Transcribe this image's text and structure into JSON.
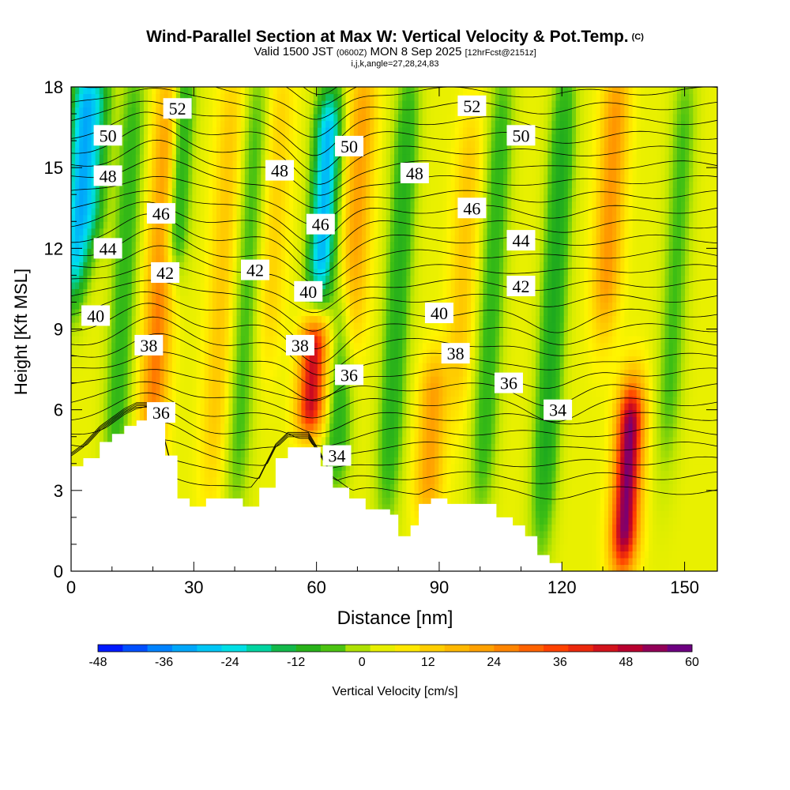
{
  "title": {
    "main": "Wind-Parallel Section at Max W: Vertical Velocity & Pot.Temp.",
    "copyright": "(C)",
    "valid_prefix": "Valid 1500 JST",
    "zulu": "(0600Z)",
    "valid_date": "MON 8 Sep 2025",
    "forecast": "[12hrFcst@2151z]",
    "indices": "i,j,k,angle=27,28,24,83"
  },
  "chart_data": {
    "type": "heatmap",
    "xlabel": "Distance [nm]",
    "ylabel": "Height [Kft MSL]",
    "xlim": [
      0,
      158
    ],
    "ylim": [
      0,
      18
    ],
    "x_ticks": [
      0,
      30,
      60,
      90,
      120,
      150
    ],
    "y_ticks": [
      0,
      3,
      6,
      9,
      12,
      15,
      18
    ],
    "colorbar": {
      "label": "Vertical Velocity [cm/s]",
      "min": -48,
      "max": 60,
      "step": 4.5,
      "tick_values": [
        -48,
        -36,
        -24,
        -12,
        0,
        12,
        24,
        36,
        48,
        60
      ],
      "tick_labels": [
        "-48",
        "-36",
        "-24",
        "-12",
        "0",
        "12",
        "24",
        "36",
        "48",
        "60"
      ]
    },
    "colors": {
      "strong_down": "#0000ff",
      "down": "#00e0f0",
      "weak_down": "#22b020",
      "neutral": "#b8e000",
      "weak_up": "#fff000",
      "up": "#ff9000",
      "strong_up": "#e00000",
      "max_up": "#600090",
      "terrain": "#ffffff"
    },
    "terrain_profile": [
      [
        0,
        3.9
      ],
      [
        3,
        4.2
      ],
      [
        7,
        4.8
      ],
      [
        10,
        5.1
      ],
      [
        13,
        5.4
      ],
      [
        16,
        5.6
      ],
      [
        20,
        5.6
      ],
      [
        23,
        4.3
      ],
      [
        26,
        2.7
      ],
      [
        29,
        2.4
      ],
      [
        33,
        2.7
      ],
      [
        39,
        2.7
      ],
      [
        42,
        2.4
      ],
      [
        46,
        3.1
      ],
      [
        50,
        4.2
      ],
      [
        53,
        4.6
      ],
      [
        58,
        4.6
      ],
      [
        61,
        3.9
      ],
      [
        64,
        3.1
      ],
      [
        68,
        2.7
      ],
      [
        72,
        2.3
      ],
      [
        78,
        2.1
      ],
      [
        80,
        1.3
      ],
      [
        83,
        1.7
      ],
      [
        85,
        2.5
      ],
      [
        88,
        2.7
      ],
      [
        92,
        2.5
      ],
      [
        100,
        2.5
      ],
      [
        104,
        2.0
      ],
      [
        108,
        1.7
      ],
      [
        111,
        1.3
      ],
      [
        114,
        0.6
      ],
      [
        117,
        0.3
      ],
      [
        120,
        0
      ],
      [
        158,
        0
      ]
    ],
    "vertical_velocity_features": [
      {
        "x": 2,
        "z_range": [
          11,
          18
        ],
        "w": -30
      },
      {
        "x": 6,
        "z_range": [
          13,
          18
        ],
        "w": -18
      },
      {
        "x": 13,
        "z_range": [
          4,
          18
        ],
        "w": -12
      },
      {
        "x": 22,
        "z_range": [
          5,
          18
        ],
        "w": 24
      },
      {
        "x": 26,
        "z_range": [
          12,
          18
        ],
        "w": -20
      },
      {
        "x": 37,
        "z_range": [
          4,
          18
        ],
        "w": 10
      },
      {
        "x": 43,
        "z_range": [
          3,
          18
        ],
        "w": -10
      },
      {
        "x": 50,
        "z_range": [
          9,
          18
        ],
        "w": 8
      },
      {
        "x": 59,
        "z_range": [
          6,
          8.5
        ],
        "w": 42
      },
      {
        "x": 62,
        "z_range": [
          11,
          17
        ],
        "w": -34
      },
      {
        "x": 66,
        "z_range": [
          4,
          10
        ],
        "w": -14
      },
      {
        "x": 70,
        "z_range": [
          9,
          18
        ],
        "w": 18
      },
      {
        "x": 80,
        "z_range": [
          3,
          18
        ],
        "w": -14
      },
      {
        "x": 88,
        "z_range": [
          3,
          7
        ],
        "w": 18
      },
      {
        "x": 96,
        "z_range": [
          7,
          16
        ],
        "w": 10
      },
      {
        "x": 103,
        "z_range": [
          3,
          18
        ],
        "w": -12
      },
      {
        "x": 118,
        "z_range": [
          2,
          18
        ],
        "w": -16
      },
      {
        "x": 132,
        "z_range": [
          10,
          18
        ],
        "w": 20
      },
      {
        "x": 136,
        "z_range": [
          1,
          6
        ],
        "w": 52
      },
      {
        "x": 148,
        "z_range": [
          5,
          18
        ],
        "w": -10
      }
    ],
    "theta_contour_labels": [
      {
        "value": "52",
        "x": 26,
        "z": 17.2
      },
      {
        "value": "52",
        "x": 98,
        "z": 17.3
      },
      {
        "value": "50",
        "x": 9,
        "z": 16.2
      },
      {
        "value": "50",
        "x": 68,
        "z": 15.8
      },
      {
        "value": "50",
        "x": 110,
        "z": 16.2
      },
      {
        "value": "48",
        "x": 9,
        "z": 14.7
      },
      {
        "value": "48",
        "x": 51,
        "z": 14.9
      },
      {
        "value": "48",
        "x": 84,
        "z": 14.8
      },
      {
        "value": "46",
        "x": 22,
        "z": 13.3
      },
      {
        "value": "46",
        "x": 61,
        "z": 12.9
      },
      {
        "value": "46",
        "x": 98,
        "z": 13.5
      },
      {
        "value": "44",
        "x": 9,
        "z": 12.0
      },
      {
        "value": "44",
        "x": 110,
        "z": 12.3
      },
      {
        "value": "42",
        "x": 23,
        "z": 11.1
      },
      {
        "value": "42",
        "x": 45,
        "z": 11.2
      },
      {
        "value": "42",
        "x": 110,
        "z": 10.6
      },
      {
        "value": "40",
        "x": 6,
        "z": 9.5
      },
      {
        "value": "40",
        "x": 58,
        "z": 10.4
      },
      {
        "value": "40",
        "x": 90,
        "z": 9.6
      },
      {
        "value": "38",
        "x": 19,
        "z": 8.4
      },
      {
        "value": "38",
        "x": 56,
        "z": 8.4
      },
      {
        "value": "38",
        "x": 94,
        "z": 8.1
      },
      {
        "value": "36",
        "x": 22,
        "z": 5.9
      },
      {
        "value": "36",
        "x": 68,
        "z": 7.3
      },
      {
        "value": "36",
        "x": 107,
        "z": 7.0
      },
      {
        "value": "34",
        "x": 65,
        "z": 4.3
      },
      {
        "value": "34",
        "x": 119,
        "z": 6.0
      }
    ]
  }
}
